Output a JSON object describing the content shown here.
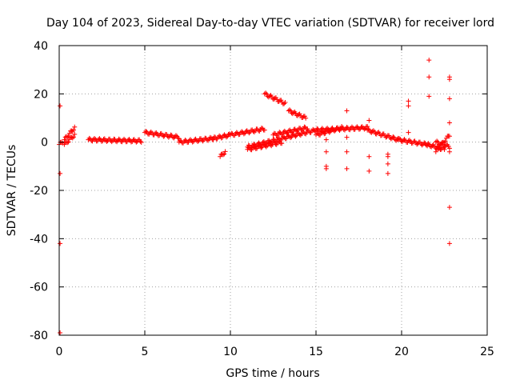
{
  "chart_data": {
    "type": "scatter",
    "title": "Day 104 of 2023, Sidereal Day-to-day VTEC variation (SDTVAR) for receiver lord",
    "xlabel": "GPS time / hours",
    "ylabel": "SDTVAR / TECUs",
    "xlim": [
      0,
      25
    ],
    "ylim": [
      -80,
      40
    ],
    "xticks": [
      0,
      5,
      10,
      15,
      20,
      25
    ],
    "yticks": [
      -80,
      -60,
      -40,
      -20,
      0,
      20,
      40
    ],
    "grid": true,
    "marker": "+",
    "colors": {
      "points": "#ff0000",
      "grid": "#a0a0a0",
      "axes": "#000000"
    },
    "segments": [
      {
        "x": [
          0.0,
          0.2
        ],
        "y": [
          -1,
          0
        ]
      },
      {
        "x": [
          0.3,
          0.9
        ],
        "y": [
          1,
          6
        ]
      },
      {
        "x": [
          0.3,
          0.9
        ],
        "y": [
          -1,
          3
        ]
      },
      {
        "x": [
          1.7,
          4.8
        ],
        "y": [
          1,
          0.5
        ]
      },
      {
        "x": [
          5.0,
          7.0
        ],
        "y": [
          4,
          2
        ]
      },
      {
        "x": [
          7.0,
          9.0
        ],
        "y": [
          0,
          1.5
        ]
      },
      {
        "x": [
          9.0,
          10.0
        ],
        "y": [
          1.5,
          3
        ]
      },
      {
        "x": [
          9.4,
          9.7
        ],
        "y": [
          -6,
          -4
        ]
      },
      {
        "x": [
          10.0,
          12.0
        ],
        "y": [
          3,
          5.5
        ]
      },
      {
        "x": [
          11.0,
          15.0
        ],
        "y": [
          -2,
          5
        ]
      },
      {
        "x": [
          11.0,
          13.0
        ],
        "y": [
          -3,
          0
        ]
      },
      {
        "x": [
          12.0,
          13.2
        ],
        "y": [
          20,
          16
        ]
      },
      {
        "x": [
          13.4,
          14.4
        ],
        "y": [
          13,
          10
        ]
      },
      {
        "x": [
          12.5,
          14.5
        ],
        "y": [
          3,
          6
        ]
      },
      {
        "x": [
          15.0,
          18.0
        ],
        "y": [
          5,
          6
        ]
      },
      {
        "x": [
          15.0,
          16.5
        ],
        "y": [
          3,
          6
        ]
      },
      {
        "x": [
          18.0,
          19.8
        ],
        "y": [
          5,
          1
        ]
      },
      {
        "x": [
          19.8,
          21.5
        ],
        "y": [
          1,
          -1
        ]
      },
      {
        "x": [
          21.5,
          22.5
        ],
        "y": [
          -1,
          -3
        ]
      },
      {
        "x": [
          22.0,
          22.8
        ],
        "y": [
          -4,
          3
        ]
      },
      {
        "x": [
          22.0,
          22.8
        ],
        "y": [
          0,
          -2
        ]
      }
    ],
    "points": [
      [
        0.05,
        15
      ],
      [
        0.05,
        -13
      ],
      [
        0.05,
        -42
      ],
      [
        0.05,
        -79
      ],
      [
        15.6,
        -4
      ],
      [
        15.6,
        -10
      ],
      [
        15.6,
        -11
      ],
      [
        15.6,
        1
      ],
      [
        16.8,
        13
      ],
      [
        16.8,
        2
      ],
      [
        16.8,
        -4
      ],
      [
        16.8,
        -11
      ],
      [
        18.1,
        9
      ],
      [
        18.1,
        -6
      ],
      [
        18.1,
        -12
      ],
      [
        19.2,
        -5
      ],
      [
        19.2,
        -9
      ],
      [
        19.2,
        -13
      ],
      [
        19.2,
        -6
      ],
      [
        20.4,
        17
      ],
      [
        20.4,
        15
      ],
      [
        20.4,
        4
      ],
      [
        21.6,
        34
      ],
      [
        21.6,
        27
      ],
      [
        21.6,
        19
      ],
      [
        22.8,
        27
      ],
      [
        22.8,
        26
      ],
      [
        22.8,
        18
      ],
      [
        22.8,
        8
      ],
      [
        22.8,
        -4
      ],
      [
        22.8,
        -27
      ],
      [
        22.8,
        -42
      ]
    ]
  }
}
